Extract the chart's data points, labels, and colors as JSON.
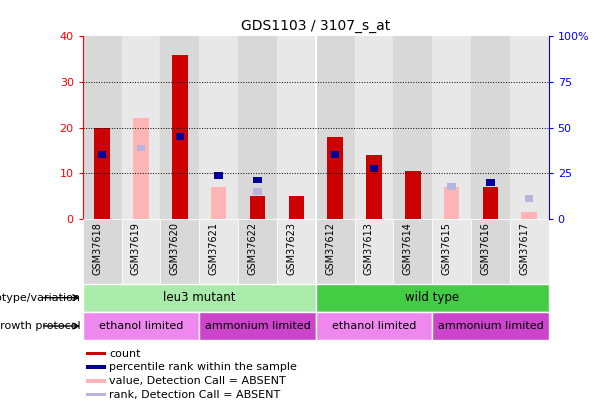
{
  "title": "GDS1103 / 3107_s_at",
  "samples": [
    "GSM37618",
    "GSM37619",
    "GSM37620",
    "GSM37621",
    "GSM37622",
    "GSM37623",
    "GSM37612",
    "GSM37613",
    "GSM37614",
    "GSM37615",
    "GSM37616",
    "GSM37617"
  ],
  "count": [
    20,
    0,
    36,
    0,
    5,
    5,
    18,
    14,
    10.5,
    0,
    7,
    0
  ],
  "percentile_rank": [
    14,
    0,
    18,
    9.5,
    8.5,
    0,
    14,
    11,
    0,
    0,
    8,
    0
  ],
  "value_absent": [
    0,
    22,
    0,
    7,
    2.5,
    0,
    0,
    0,
    3,
    7,
    0,
    1.5
  ],
  "rank_absent": [
    0,
    15.5,
    0,
    0,
    6,
    0,
    0,
    0,
    0,
    7,
    0,
    4.5
  ],
  "count_color": "#cc0000",
  "percentile_color": "#000099",
  "value_absent_color": "#ffb5b5",
  "rank_absent_color": "#b5b5dd",
  "ylim_left": [
    0,
    40
  ],
  "ylim_right": [
    0,
    100
  ],
  "yticks_left": [
    0,
    10,
    20,
    30,
    40
  ],
  "yticks_right": [
    0,
    25,
    50,
    75,
    100
  ],
  "ytick_labels_right": [
    "0",
    "25",
    "50",
    "75",
    "100%"
  ],
  "grid_lines": [
    10,
    20,
    30
  ],
  "groups": [
    {
      "label": "leu3 mutant",
      "color": "#aaeaaa",
      "start": 0,
      "end": 6
    },
    {
      "label": "wild type",
      "color": "#44cc44",
      "start": 6,
      "end": 12
    }
  ],
  "protocols": [
    {
      "label": "ethanol limited",
      "color": "#ee88ee",
      "start": 0,
      "end": 3
    },
    {
      "label": "ammonium limited",
      "color": "#cc44cc",
      "start": 3,
      "end": 6
    },
    {
      "label": "ethanol limited",
      "color": "#ee88ee",
      "start": 6,
      "end": 9
    },
    {
      "label": "ammonium limited",
      "color": "#cc44cc",
      "start": 9,
      "end": 12
    }
  ],
  "row_labels": [
    "genotype/variation",
    "growth protocol"
  ],
  "legend_items": [
    {
      "label": "count",
      "color": "#cc0000"
    },
    {
      "label": "percentile rank within the sample",
      "color": "#000099"
    },
    {
      "label": "value, Detection Call = ABSENT",
      "color": "#ffb5b5"
    },
    {
      "label": "rank, Detection Call = ABSENT",
      "color": "#b5b5dd"
    }
  ],
  "bar_width": 0.4,
  "small_bar_width": 0.22,
  "small_bar_height": 1.5,
  "col_bg_even": "#d8d8d8",
  "col_bg_odd": "#e8e8e8"
}
